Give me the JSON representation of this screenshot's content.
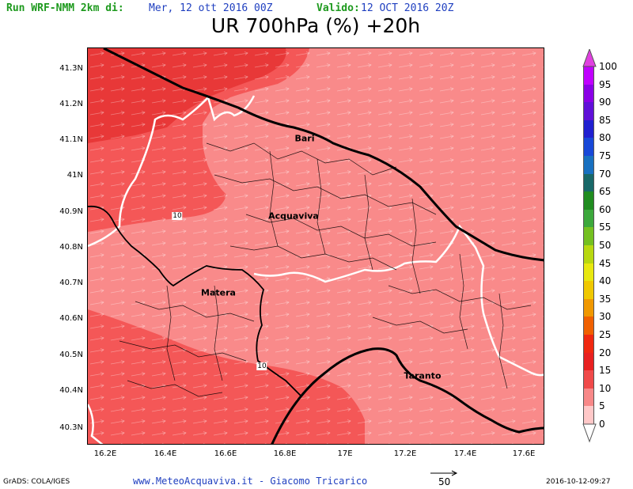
{
  "header": {
    "run_label": "Run WRF-NMM 2km di:",
    "run_value": "Mer, 12 ott 2016 00Z",
    "valid_label": "Valido:",
    "valid_value": "12 OCT 2016 20Z"
  },
  "title": "UR 700hPa (%) +20h",
  "map": {
    "y_labels": [
      "41.3N",
      "41.2N",
      "41.1N",
      "41N",
      "40.9N",
      "40.8N",
      "40.7N",
      "40.6N",
      "40.5N",
      "40.4N",
      "40.3N"
    ],
    "x_labels": [
      "16.2E",
      "16.4E",
      "16.6E",
      "16.8E",
      "17E",
      "17.2E",
      "17.4E",
      "17.6E"
    ],
    "cities": [
      {
        "name": "Bari"
      },
      {
        "name": "Acquaviva"
      },
      {
        "name": "Matera"
      },
      {
        "name": "Taranto"
      }
    ],
    "contour_labels": [
      "10",
      "10"
    ],
    "colors": {
      "fill_5_10": "#f98a8a",
      "fill_10_15": "#f45757",
      "fill_15_20": "#e83838"
    }
  },
  "colorbar": {
    "labels": [
      "100",
      "95",
      "90",
      "85",
      "80",
      "75",
      "70",
      "65",
      "60",
      "55",
      "50",
      "45",
      "40",
      "35",
      "30",
      "25",
      "20",
      "15",
      "10",
      "5",
      "0"
    ],
    "colors": [
      "#c000ff",
      "#8a00e6",
      "#6010d8",
      "#2020d0",
      "#1848d8",
      "#1870c0",
      "#186868",
      "#208c20",
      "#3ca83c",
      "#74c020",
      "#b8d810",
      "#e8e810",
      "#f0c800",
      "#f09800",
      "#f06000",
      "#f02810",
      "#e82020",
      "#f04a4a",
      "#f88888",
      "#ffc8c8"
    ]
  },
  "footer": {
    "left": "GrADS: COLA/IGES",
    "center": "www.MeteoAcquaviva.it - Giacomo Tricarico",
    "ref_value": "50",
    "right": "2016-10-12-09:27"
  }
}
